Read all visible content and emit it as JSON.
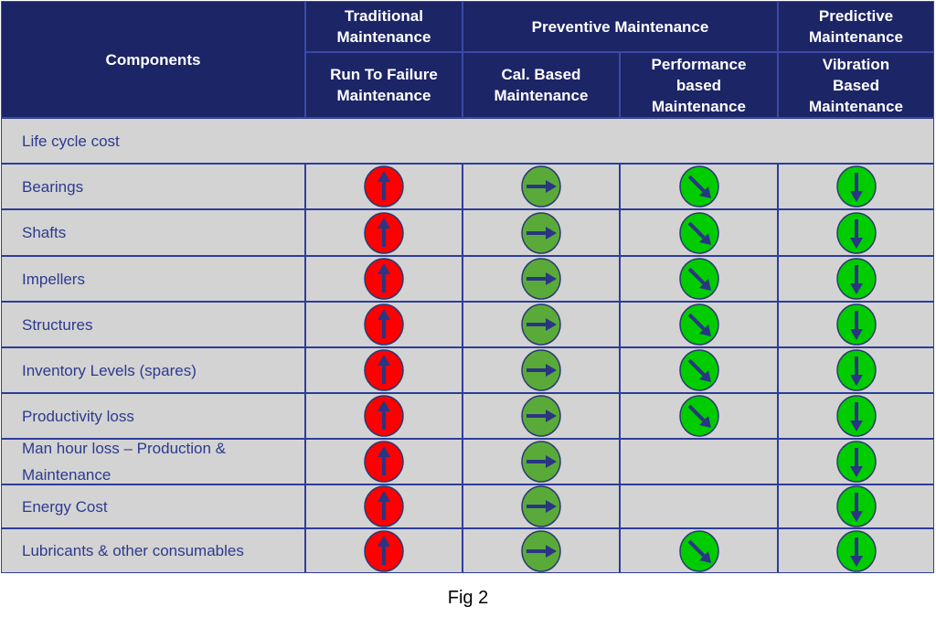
{
  "header": {
    "components": "Components",
    "groups": [
      "Traditional\nMaintenance",
      "Preventive Maintenance",
      "Predictive\nMaintenance"
    ],
    "subcolumns": [
      "Run To Failure\nMaintenance",
      "Cal. Based\nMaintenance",
      "Performance\nbased\nMaintenance",
      "Vibration\nBased\nMaintenance"
    ]
  },
  "section_row": "Life cycle cost",
  "rows": [
    {
      "label": "Bearings",
      "cells": [
        "up",
        "right",
        "down-right",
        "down"
      ]
    },
    {
      "label": "Shafts",
      "cells": [
        "up",
        "right",
        "down-right",
        "down"
      ]
    },
    {
      "label": "Impellers",
      "cells": [
        "up",
        "right",
        "down-right",
        "down"
      ]
    },
    {
      "label": "Structures",
      "cells": [
        "up",
        "right",
        "down-right",
        "down"
      ]
    },
    {
      "label": "Inventory  Levels (spares)",
      "cells": [
        "up",
        "right",
        "down-right",
        "down"
      ]
    },
    {
      "label": "Productivity loss",
      "cells": [
        "up",
        "right",
        "down-right",
        "down"
      ]
    },
    {
      "label": "Man hour loss – Production & Maintenance",
      "cells": [
        "up",
        "right",
        null,
        "down"
      ]
    },
    {
      "label": "Energy Cost",
      "cells": [
        "up",
        "right",
        null,
        "down"
      ]
    },
    {
      "label": "Lubricants & other consumables",
      "cells": [
        "up",
        "right",
        "down-right",
        "down"
      ]
    }
  ],
  "symbol_colors": {
    "up": "#ff0000",
    "right": "#5aaa3a",
    "down-right": "#00cc00",
    "down": "#00cc00",
    "arrow": "#2a3585"
  },
  "caption": "Fig 2"
}
